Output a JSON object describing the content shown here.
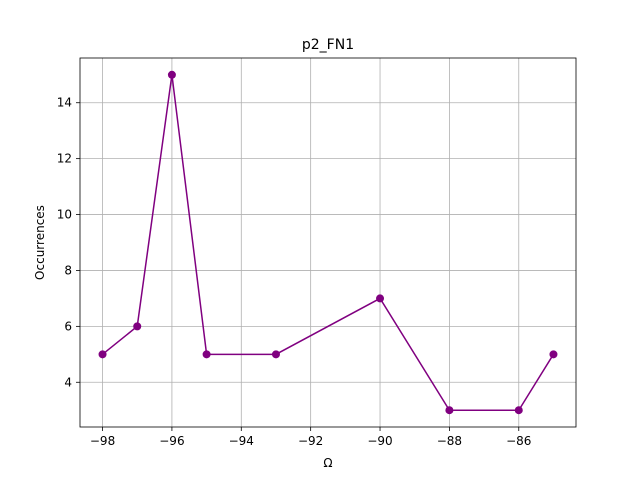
{
  "chart_data": {
    "type": "line",
    "title": "p2_FN1",
    "xlabel": "Ω",
    "ylabel": "Occurrences",
    "x": [
      -98,
      -97,
      -96,
      -95,
      -93,
      -90,
      -88,
      -86,
      -85
    ],
    "series": [
      {
        "values": [
          5,
          6,
          15,
          5,
          5,
          7,
          3,
          3,
          5
        ],
        "color": "#800080"
      }
    ],
    "xlim": [
      -98.65,
      -84.35
    ],
    "ylim": [
      2.4,
      15.6
    ],
    "xticks": [
      -98,
      -96,
      -94,
      -92,
      -90,
      -88,
      -86
    ],
    "yticks": [
      4,
      6,
      8,
      10,
      12,
      14
    ],
    "grid": true,
    "legend": "none",
    "marker": "circle"
  }
}
